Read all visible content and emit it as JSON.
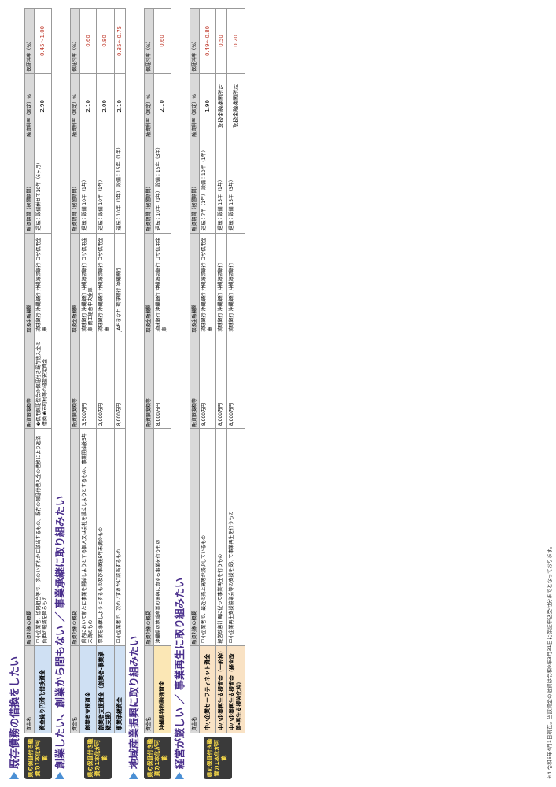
{
  "header": [
    "資金名",
    "融資対象の概要",
    "融資限度額等",
    "取扱金融機関",
    "融資期間（据置期間）",
    "融資利率（固定）%",
    "保証料率（%）"
  ],
  "sections": [
    {
      "title": "既存債務の借換をしたい",
      "badge": "県の保証付き融資の1本化が可能",
      "rows": [
        {
          "name": "資金繰り円滑化借換資金",
          "target": "中小企業者、協同組合等で、次のいずれかに該当するもの。既存の保証付借入金の借換により返済負担の軽減を図るもの",
          "limit": "❶信用保証協会の保証付き既存借入金の借換 ❷市町村等の経営安定資金",
          "banks": "琉球銀行 沖縄銀行 沖縄海邦銀行 コザ信用金庫",
          "term": "運転：設備併せて10年（6ヶ月）",
          "rate": "2.90",
          "guarantee": "0.45〜1.00"
        }
      ]
    },
    {
      "title": "創業したい、創業から間もない ／ 事業承継に取り組みたい",
      "badge": "県の保証付き融資の1本化が可能",
      "rows": [
        {
          "name": "創業者支援資金",
          "target": "県内において新たに事業を開始しようとする個人又は会社を設立しようとするもの、事業開始後5年未満のもの",
          "limit": "3,500万円",
          "banks": "琉球銀行 沖縄銀行 沖縄海邦銀行 コザ信用金庫 商工組合中央金庫",
          "term": "運転：設備 10年（1年）",
          "rate": "2.10",
          "guarantee": "0.60"
        },
        {
          "name": "創業者支援資金（創業者・事業承継支援）",
          "target": "事業を承継しようとするもの及び承継後5年未満のもの",
          "limit": "2,000万円",
          "banks": "琉球銀行 沖縄銀行 沖縄海邦銀行 コザ信用金庫",
          "term": "運転：設備 10年（1年）",
          "rate": "2.00",
          "guarantee": "0.80"
        },
        {
          "name": "事業承継資金",
          "target": "中小企業者で、次のいずれかに該当するもの",
          "limit": "8,000万円",
          "banks": "JAおきなわ 琉球銀行 沖縄銀行",
          "term": "運転：10年（1年） 設備：15年（1年）",
          "rate": "2.10",
          "guarantee": "0.35〜0.75"
        }
      ]
    },
    {
      "title": "地域産業振興に取り組みたい",
      "badge": "県の保証付き融資の1本化が可能",
      "rows": [
        {
          "name": "沖縄県特別融通資金",
          "target": "沖縄県の地域産業の振興に資する事業を行うもの",
          "limit": "8,000万円",
          "banks": "琉球銀行 沖縄銀行 沖縄海邦銀行 コザ信用金庫",
          "term": "運転：10年（1年） 設備：15年（3年）",
          "rate": "2.10",
          "guarantee": "0.60"
        }
      ]
    },
    {
      "title": "経営が厳しい ／ 事業再生に取り組みたい",
      "badge": "県の保証付き融資の1本化が可能",
      "rows": [
        {
          "name": "中小企業セーフティネット資金",
          "target": "中小企業者で、最近の売上高等が減少しているもの",
          "limit": "8,000万円",
          "banks": "琉球銀行 沖縄銀行 沖縄海邦銀行 コザ信用金庫",
          "term": "運転：7年（1年） 設備：10年（1年）",
          "rate": "1.90",
          "guarantee": "0.49〜0.80"
        },
        {
          "name": "中小企業再生支援資金（一般枠）",
          "target": "経営改善計画に従って事業再生を行うもの",
          "limit": "8,000万円",
          "banks": "琉球銀行 沖縄銀行 沖縄海邦銀行",
          "term": "運転：設備 15年（1年）",
          "rate": "取扱金融機関所定",
          "guarantee": "0.50"
        },
        {
          "name": "中小企業再生支援資金（経営改善・再生支援強化枠）",
          "target": "中小企業再生支援協議会等の支援を受けて事業再生を行うもの",
          "limit": "8,000万円",
          "banks": "琉球銀行 沖縄銀行 沖縄海邦銀行",
          "term": "運転：設備 15年（3年）",
          "rate": "取扱金融機関所定",
          "guarantee": "0.20"
        }
      ]
    }
  ],
  "footnote": "※4 令和6年4月1日現在。当該資金の融資は令和9年3月31日に保証申込受付分までとなっております。"
}
